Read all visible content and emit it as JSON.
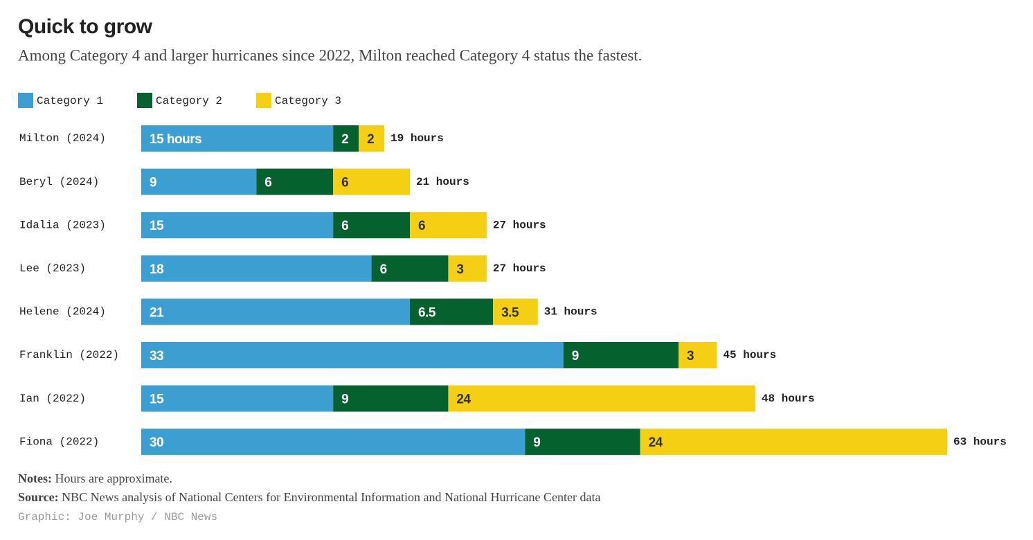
{
  "chart_data": {
    "type": "stacked-bar",
    "title": "Quick to grow",
    "subtitle": "Among Category 4 and larger hurricanes since 2022, Milton reached Category 4 status the fastest.",
    "categories": [
      "Milton (2024)",
      "Beryl (2024)",
      "Idalia (2023)",
      "Lee (2023)",
      "Helene (2024)",
      "Franklin (2022)",
      "Ian (2022)",
      "Fiona (2022)"
    ],
    "series": [
      {
        "name": "Category 1",
        "color": "#3d9fd1",
        "label_color": "#ffffff",
        "values": [
          15,
          9,
          15,
          18,
          21,
          33,
          15,
          30
        ],
        "value_labels": [
          "15 hours",
          "9",
          "15",
          "18",
          "21",
          "33",
          "15",
          "30"
        ]
      },
      {
        "name": "Category 2",
        "color": "#05622f",
        "label_color": "#ffffff",
        "values": [
          2,
          6,
          6,
          6,
          6.5,
          9,
          9,
          9
        ],
        "value_labels": [
          "2",
          "6",
          "6",
          "6",
          "6.5",
          "9",
          "9",
          "9"
        ]
      },
      {
        "name": "Category 3",
        "color": "#f4cf14",
        "label_color": "#333333",
        "values": [
          2,
          6,
          6,
          3,
          3.5,
          3,
          24,
          24
        ],
        "value_labels": [
          "2",
          "6",
          "6",
          "3",
          "3.5",
          "3",
          "24",
          "24"
        ]
      }
    ],
    "total_labels": [
      "19 hours",
      "21 hours",
      "27 hours",
      "27 hours",
      "31 hours",
      "45 hours",
      "48 hours",
      "63 hours"
    ],
    "notes_label": "Notes:",
    "notes": "Hours are approximate.",
    "source_label": "Source:",
    "source": "NBC News analysis of National Centers for Environmental Information and National Hurricane Center data",
    "credit": "Graphic: Joe Murphy / NBC News"
  }
}
